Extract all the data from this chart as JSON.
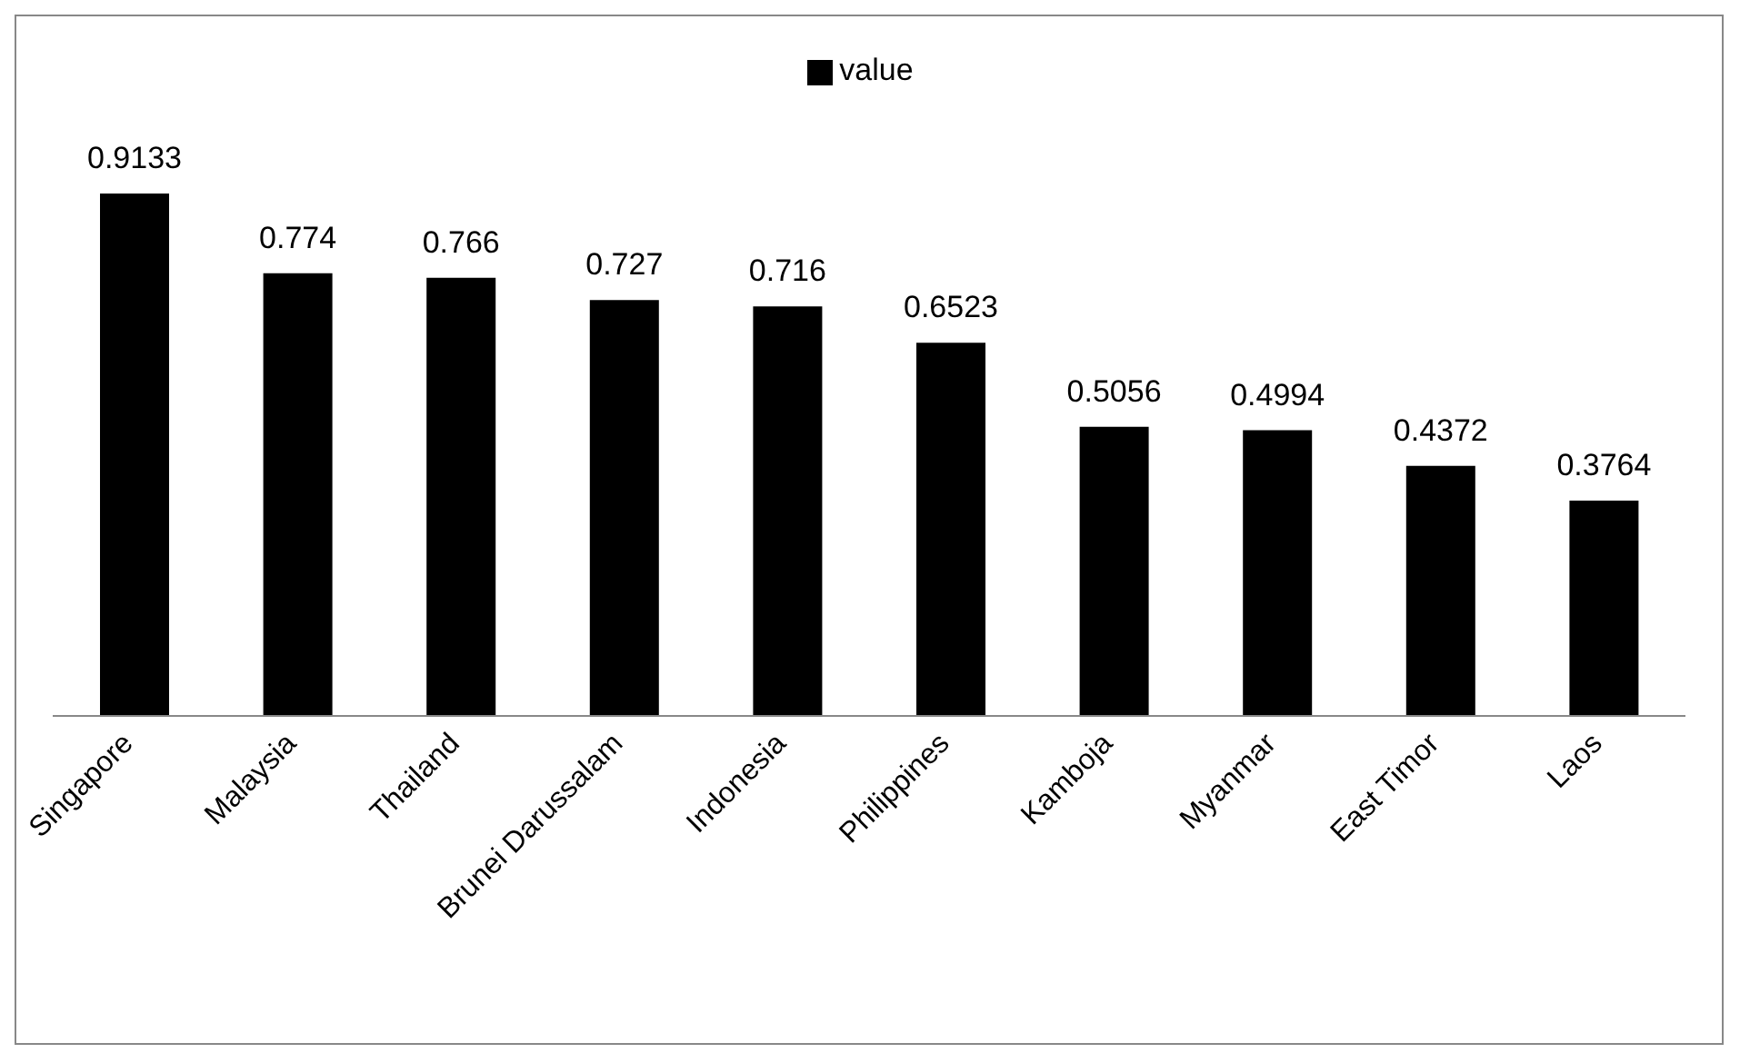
{
  "chart_data": {
    "type": "bar",
    "categories": [
      "Singapore",
      "Malaysia",
      "Thailand",
      "Brunei Darussalam",
      "Indonesia",
      "Philippines",
      "Kamboja",
      "Myanmar",
      "East Timor",
      "Laos"
    ],
    "series": [
      {
        "name": "value",
        "color": "#000000",
        "values": [
          0.9133,
          0.774,
          0.766,
          0.727,
          0.716,
          0.6523,
          0.5056,
          0.4994,
          0.4372,
          0.3764
        ]
      }
    ],
    "data_labels": true,
    "legend": "top",
    "grid": false
  }
}
